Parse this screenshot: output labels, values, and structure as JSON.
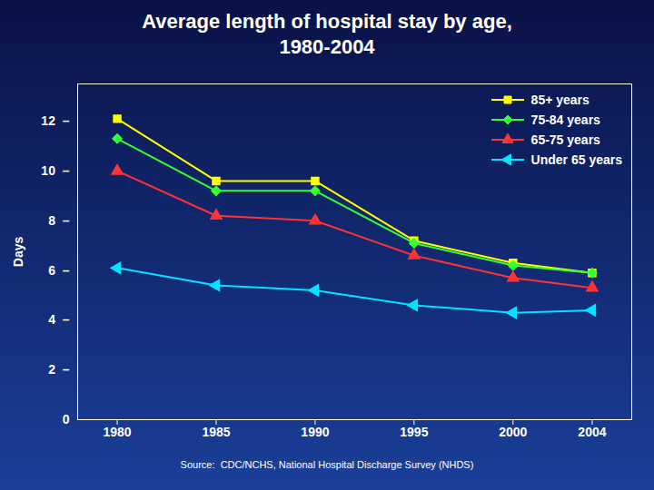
{
  "chart_data": {
    "type": "line",
    "title": "Average length of hospital stay by age,\n1980-2004",
    "caption": "Source:  CDC/NCHS, National Hospital Discharge Survey (NHDS)",
    "ylabel": "Days",
    "x": [
      1980,
      1985,
      1990,
      1995,
      2000,
      2004
    ],
    "xlim": [
      1978,
      2006
    ],
    "xticks": [
      1980,
      1985,
      1990,
      1995,
      2000,
      2004
    ],
    "ylim": [
      0,
      13.5
    ],
    "yticks": [
      0,
      {
        "value": 2,
        "label": "2  –"
      },
      {
        "value": 4,
        "label": "4  –"
      },
      {
        "value": 6,
        "label": "6  –"
      },
      {
        "value": 8,
        "label": "8  –"
      },
      {
        "value": 10,
        "label": "10  –"
      },
      {
        "value": 12,
        "label": "12  –"
      }
    ],
    "grid": false,
    "legend": "upper right",
    "series": [
      {
        "name": "85+ years",
        "color": "#ffff00",
        "marker": "square",
        "values": [
          12.1,
          9.6,
          9.6,
          7.2,
          6.3,
          5.9
        ]
      },
      {
        "name": "75-84 years",
        "color": "#33ff33",
        "marker": "diamond",
        "values": [
          11.3,
          9.2,
          9.2,
          7.1,
          6.2,
          5.9
        ]
      },
      {
        "name": "65-75 years",
        "color": "#ff3333",
        "marker": "triangle_up",
        "values": [
          10.0,
          8.2,
          8.0,
          6.6,
          5.7,
          5.3
        ]
      },
      {
        "name": "Under 65 years",
        "color": "#00e5ff",
        "marker": "triangle_left",
        "values": [
          6.1,
          5.4,
          5.2,
          4.6,
          4.3,
          4.4
        ]
      }
    ]
  }
}
